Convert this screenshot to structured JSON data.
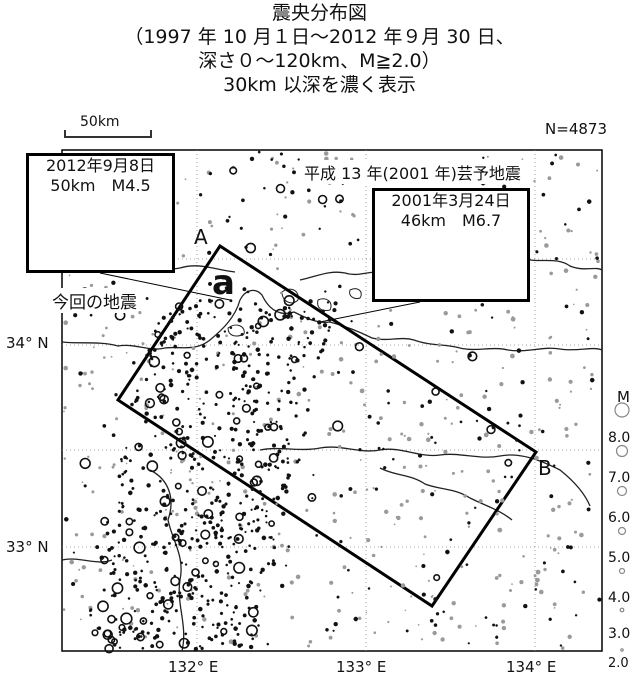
{
  "title": {
    "line1": "震央分布図",
    "line2": "（1997 年 10 月１日～2012 年９月 30 日、",
    "line3": "深さ０～120km、M≧2.0）",
    "line4": "30km 以深を濃く表示"
  },
  "scale": {
    "label": "50km"
  },
  "count": "N=4873",
  "callout_2012": {
    "date": "2012年9月8日",
    "details": "50km　M4.5"
  },
  "callout_2001": {
    "date": "2001年3月24日",
    "details": "46km　M6.7"
  },
  "eq_2001_name": "平成 13 年(2001 年)芸予地震",
  "this_eq_label": "今回の地震",
  "cross_section": {
    "start": "A",
    "end": "B",
    "region": "a"
  },
  "axes": {
    "lat": [
      "34° N",
      "33° N"
    ],
    "lon": [
      "132° E",
      "133° E",
      "134° E"
    ]
  },
  "magnitude_legend": {
    "title": "M",
    "levels": [
      "8.0",
      "7.0",
      "6.0",
      "5.0",
      "4.0",
      "3.0",
      "2.0"
    ]
  },
  "colors": {
    "deep_events": "#111111",
    "shallow_events": "#9a9a9a",
    "coastline": "#222222",
    "grid": "#8a8a8a",
    "section_box": "#000000"
  }
}
